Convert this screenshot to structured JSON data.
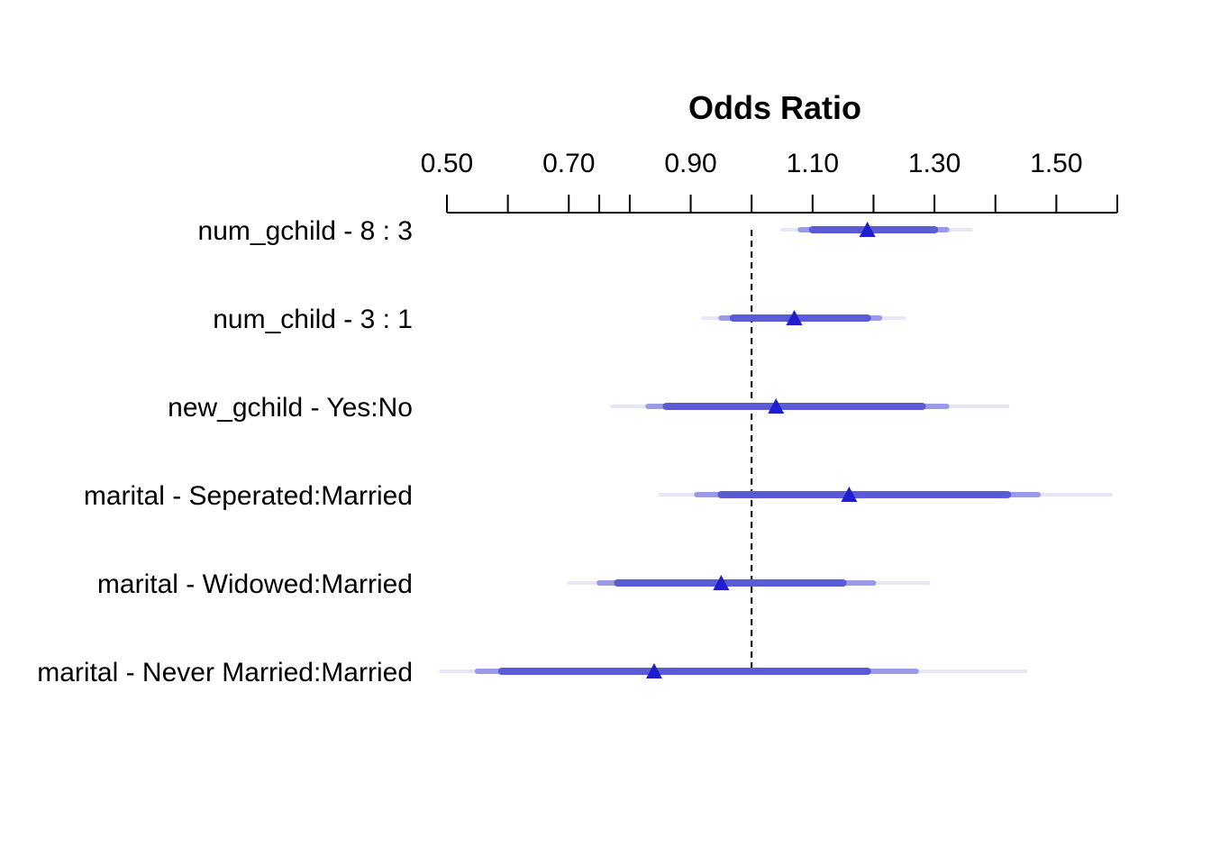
{
  "chart_data": {
    "type": "forest",
    "title": "Odds Ratio",
    "xlim": [
      0.5,
      1.6
    ],
    "ticks_labeled": [
      "0.50",
      "0.70",
      "0.90",
      "1.10",
      "1.30",
      "1.50"
    ],
    "ticks_minor": [
      0.6,
      0.75,
      0.8,
      1.0,
      1.2,
      1.4
    ],
    "reference_line": 1.0,
    "rows": [
      {
        "label": "num_gchild - 8 : 3",
        "estimate": 1.19,
        "ci_inner": [
          1.1,
          1.3
        ],
        "ci_mid": [
          1.08,
          1.32
        ],
        "ci_outer": [
          1.05,
          1.36
        ]
      },
      {
        "label": "num_child - 3 : 1",
        "estimate": 1.07,
        "ci_inner": [
          0.97,
          1.19
        ],
        "ci_mid": [
          0.95,
          1.21
        ],
        "ci_outer": [
          0.92,
          1.25
        ]
      },
      {
        "label": "new_gchild - Yes:No",
        "estimate": 1.04,
        "ci_inner": [
          0.86,
          1.28
        ],
        "ci_mid": [
          0.83,
          1.32
        ],
        "ci_outer": [
          0.77,
          1.42
        ]
      },
      {
        "label": "marital - Seperated:Married",
        "estimate": 1.16,
        "ci_inner": [
          0.95,
          1.42
        ],
        "ci_mid": [
          0.91,
          1.47
        ],
        "ci_outer": [
          0.85,
          1.59
        ]
      },
      {
        "label": "marital - Widowed:Married",
        "estimate": 0.95,
        "ci_inner": [
          0.78,
          1.15
        ],
        "ci_mid": [
          0.75,
          1.2
        ],
        "ci_outer": [
          0.7,
          1.29
        ]
      },
      {
        "label": "marital - Never Married:Married",
        "estimate": 0.84,
        "ci_inner": [
          0.59,
          1.19
        ],
        "ci_mid": [
          0.55,
          1.27
        ],
        "ci_outer": [
          0.49,
          1.45
        ]
      }
    ],
    "colors": {
      "inner": "#5b5bd6",
      "mid": "#9a9ae6",
      "outer": "#e6e6f6",
      "marker": "#1e1ecf",
      "axis": "#000000"
    }
  }
}
